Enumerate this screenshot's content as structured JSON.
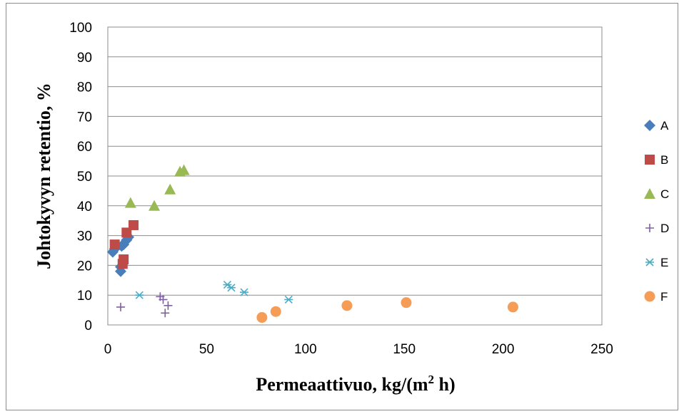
{
  "chart_data": {
    "type": "scatter",
    "xlabel": "Permeaattivuo, kg/(m",
    "xlabel_sup": "2",
    "xlabel_tail": " h)",
    "ylabel": "Johtokyvyn retentio, %",
    "xlim": [
      0,
      250
    ],
    "ylim": [
      0,
      100
    ],
    "x_ticks": [
      0,
      50,
      100,
      150,
      200,
      250
    ],
    "y_ticks": [
      0,
      10,
      20,
      30,
      40,
      50,
      60,
      70,
      80,
      90,
      100
    ],
    "grid": "horizontal",
    "legend_position": "right",
    "series": [
      {
        "name": "A",
        "marker": "diamond",
        "color": "#4a7ebb",
        "points": [
          [
            2.5,
            24.5
          ],
          [
            3.5,
            25.5
          ],
          [
            6.5,
            18
          ],
          [
            6.5,
            19.5
          ],
          [
            7,
            26.5
          ],
          [
            8,
            27
          ],
          [
            9.5,
            28.5
          ],
          [
            10.5,
            29.5
          ]
        ]
      },
      {
        "name": "B",
        "marker": "square",
        "color": "#be4b48",
        "points": [
          [
            3.5,
            27
          ],
          [
            7.5,
            20.5
          ],
          [
            8,
            22
          ],
          [
            9.5,
            31
          ],
          [
            13,
            33.5
          ]
        ]
      },
      {
        "name": "C",
        "marker": "triangle",
        "color": "#98b954",
        "points": [
          [
            11.5,
            41
          ],
          [
            23.5,
            40
          ],
          [
            31.5,
            45.5
          ],
          [
            36.5,
            51.5
          ],
          [
            38.5,
            52
          ]
        ]
      },
      {
        "name": "D",
        "marker": "plus",
        "color": "#7d60a0",
        "points": [
          [
            6.5,
            6
          ],
          [
            26.5,
            9.5
          ],
          [
            28,
            8.5
          ],
          [
            29,
            4
          ],
          [
            30.5,
            6.5
          ]
        ]
      },
      {
        "name": "E",
        "marker": "asterisk",
        "color": "#4bacc6",
        "points": [
          [
            16,
            10
          ],
          [
            60.5,
            13.5
          ],
          [
            62.5,
            12.5
          ],
          [
            69,
            11
          ],
          [
            91.5,
            8.5
          ]
        ]
      },
      {
        "name": "F",
        "marker": "circle",
        "color": "#f59d56",
        "points": [
          [
            78,
            2.5
          ],
          [
            85,
            4.5
          ],
          [
            121,
            6.5
          ],
          [
            151,
            7.5
          ],
          [
            205,
            6
          ]
        ]
      }
    ]
  }
}
